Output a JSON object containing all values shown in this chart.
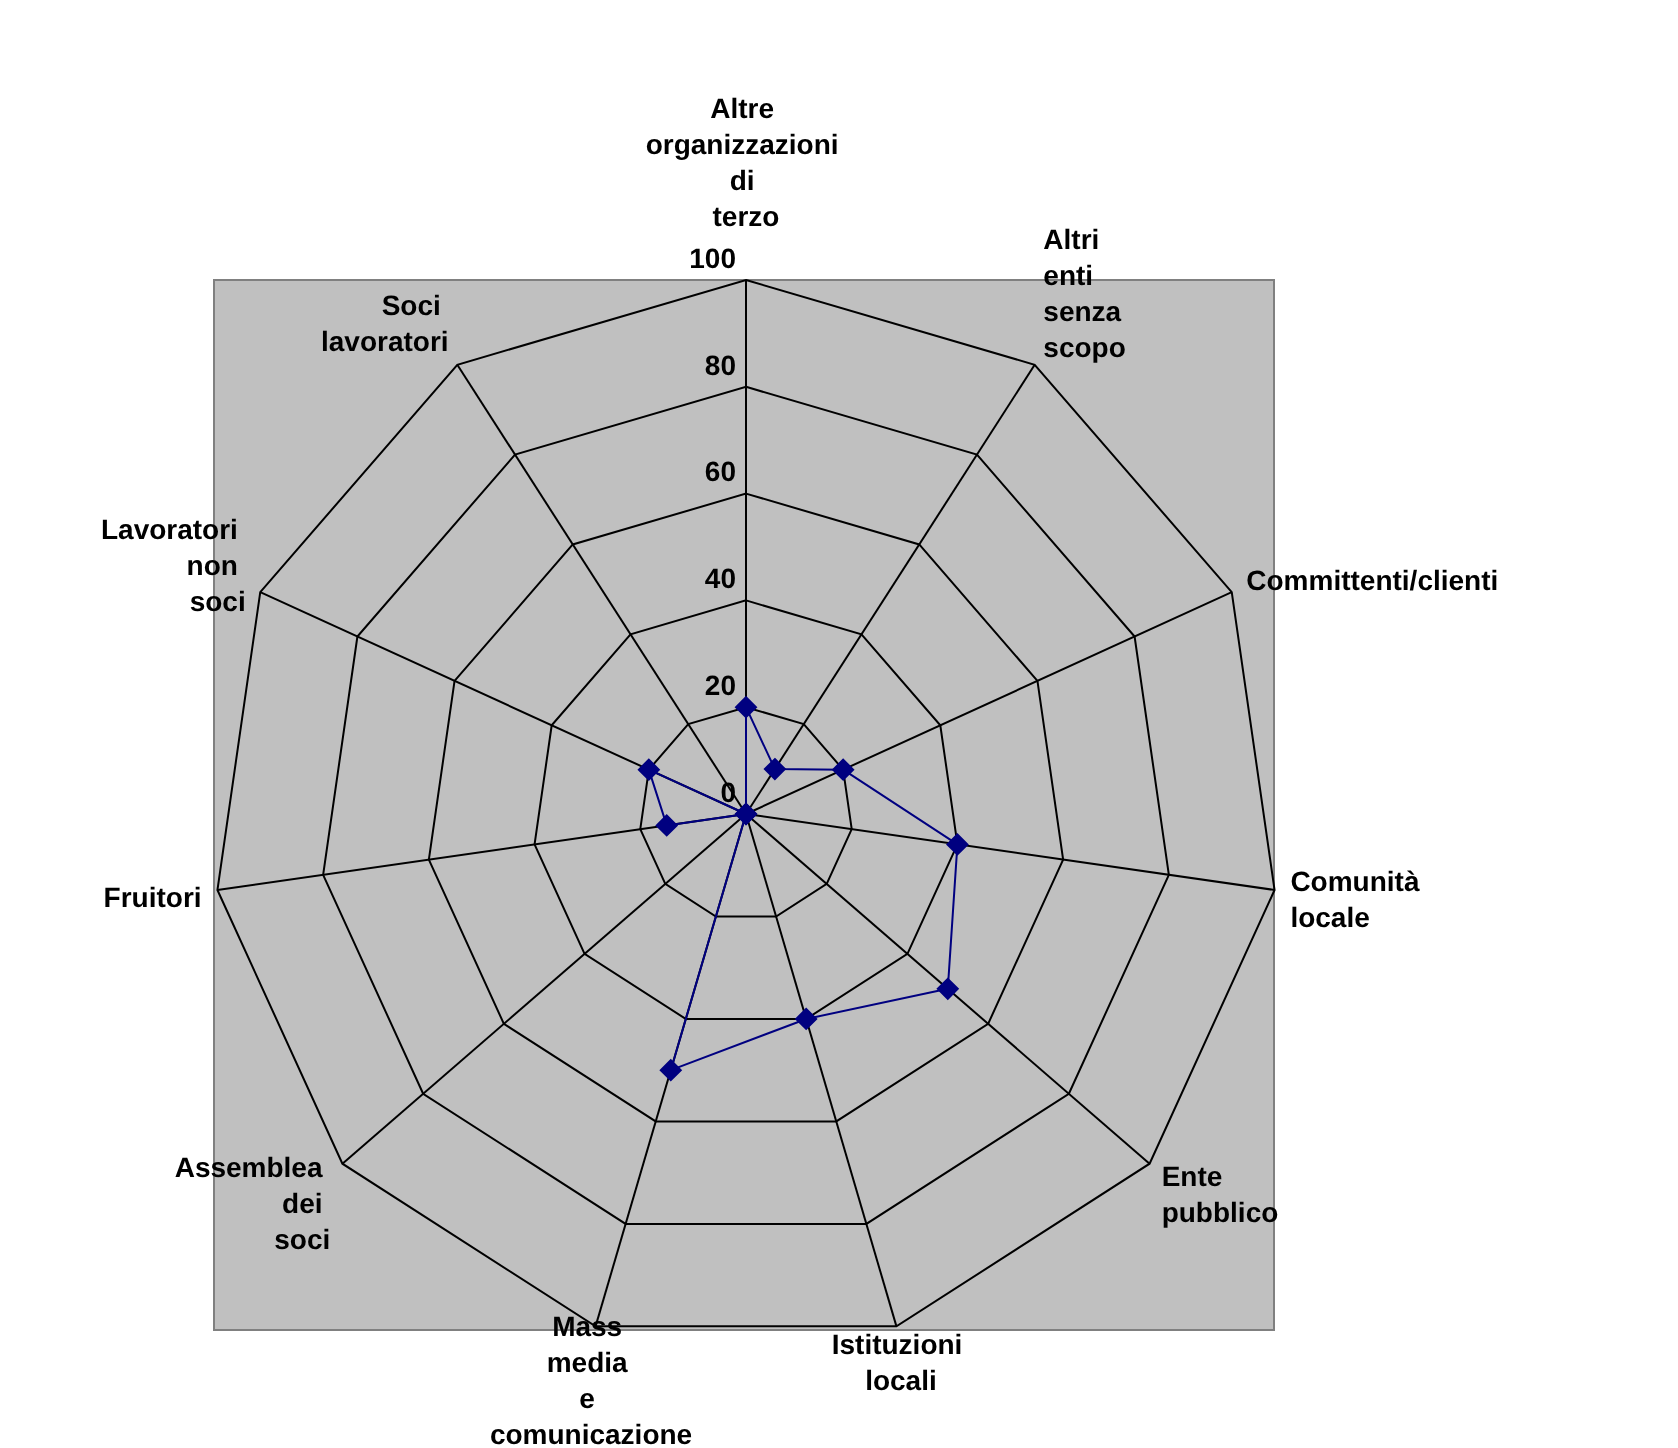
{
  "chart_data": {
    "type": "radar",
    "categories": [
      "Altre organizzazioni di terzo",
      "Altri enti senza scopo",
      "Committenti/clienti",
      "Comunità locale",
      "Ente pubblico",
      "Istituzioni locali",
      "Mass media e comunicazione",
      "Assemblea dei soci",
      "Fruitori",
      "Lavoratori non soci",
      "Soci lavoratori"
    ],
    "series": [
      {
        "color": "#000080",
        "values": [
          20,
          10,
          20,
          40,
          50,
          40,
          50,
          0,
          15,
          20,
          0
        ]
      }
    ],
    "ylim": [
      0,
      100
    ],
    "yticks": [
      0,
      20,
      40,
      60,
      80,
      100
    ],
    "grid": true,
    "marker": "diamond"
  }
}
